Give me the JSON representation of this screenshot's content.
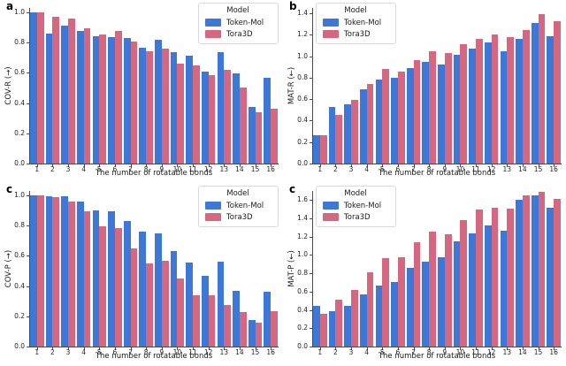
{
  "xlabel": "The number of rotatable bonds",
  "categories": [
    1,
    2,
    3,
    4,
    5,
    6,
    7,
    8,
    9,
    10,
    11,
    12,
    13,
    14,
    15,
    16
  ],
  "legend_title": "Model",
  "colors": {
    "token_mol": "#3d78d6",
    "tora3d": "#d56880",
    "spine": "#4a4a4a",
    "text": "#1a1a1a",
    "legend_border": "#d9d9d9",
    "background": "#ffffff"
  },
  "chart_data": [
    {
      "type": "bar",
      "panel_label": "a",
      "ylabel": "COV-R (→)",
      "ylim": [
        0,
        1.03
      ],
      "yticks": [
        0.0,
        0.2,
        0.4,
        0.6,
        0.8,
        1.0
      ],
      "legend_position": "upper-right",
      "grid": false,
      "series": [
        {
          "name": "Token-Mol",
          "color": "#3d78d6",
          "values": [
            1.0,
            0.86,
            0.915,
            0.875,
            0.84,
            0.835,
            0.83,
            0.765,
            0.82,
            0.74,
            0.715,
            0.61,
            0.74,
            0.595,
            0.375,
            0.57
          ]
        },
        {
          "name": "Tora3D",
          "color": "#d56880",
          "values": [
            1.0,
            0.97,
            0.96,
            0.895,
            0.855,
            0.875,
            0.81,
            0.745,
            0.76,
            0.66,
            0.65,
            0.585,
            0.62,
            0.505,
            0.34,
            0.365
          ]
        }
      ]
    },
    {
      "type": "bar",
      "panel_label": "b",
      "ylabel": "MAT-R (←)",
      "ylim": [
        0,
        1.45
      ],
      "yticks": [
        0.0,
        0.2,
        0.4,
        0.6,
        0.8,
        1.0,
        1.2,
        1.4
      ],
      "legend_position": "upper-left",
      "grid": false,
      "series": [
        {
          "name": "Token-Mol",
          "color": "#3d78d6",
          "values": [
            0.265,
            0.525,
            0.55,
            0.69,
            0.78,
            0.8,
            0.89,
            0.95,
            0.92,
            1.015,
            1.07,
            1.125,
            1.05,
            1.165,
            1.31,
            1.19
          ]
        },
        {
          "name": "Tora3D",
          "color": "#d56880",
          "values": [
            0.26,
            0.45,
            0.59,
            0.74,
            0.88,
            0.855,
            0.965,
            1.05,
            1.03,
            1.11,
            1.16,
            1.2,
            1.18,
            1.24,
            1.39,
            1.33
          ]
        }
      ]
    },
    {
      "type": "bar",
      "panel_label": "c",
      "ylabel": "COV-P (→)",
      "ylim": [
        0,
        1.03
      ],
      "yticks": [
        0.0,
        0.2,
        0.4,
        0.6,
        0.8,
        1.0
      ],
      "legend_position": "upper-right",
      "grid": false,
      "series": [
        {
          "name": "Token-Mol",
          "color": "#3d78d6",
          "values": [
            1.0,
            0.995,
            0.995,
            0.96,
            0.9,
            0.895,
            0.83,
            0.76,
            0.75,
            0.63,
            0.555,
            0.47,
            0.56,
            0.37,
            0.175,
            0.365
          ]
        },
        {
          "name": "Tora3D",
          "color": "#d56880",
          "values": [
            1.0,
            0.99,
            0.96,
            0.895,
            0.795,
            0.785,
            0.65,
            0.55,
            0.565,
            0.45,
            0.34,
            0.34,
            0.275,
            0.23,
            0.16,
            0.235
          ]
        }
      ]
    },
    {
      "type": "bar",
      "panel_label": "c",
      "ylabel": "MAT-P (←)",
      "ylim": [
        0,
        1.7
      ],
      "yticks": [
        0.0,
        0.2,
        0.4,
        0.6,
        0.8,
        1.0,
        1.2,
        1.4,
        1.6
      ],
      "legend_position": "upper-left",
      "grid": false,
      "series": [
        {
          "name": "Token-Mol",
          "color": "#3d78d6",
          "values": [
            0.445,
            0.39,
            0.44,
            0.57,
            0.665,
            0.705,
            0.855,
            0.93,
            0.975,
            1.145,
            1.235,
            1.32,
            1.265,
            1.6,
            1.655,
            1.52
          ]
        },
        {
          "name": "Tora3D",
          "color": "#d56880",
          "values": [
            0.355,
            0.515,
            0.615,
            0.81,
            0.97,
            0.98,
            1.135,
            1.255,
            1.225,
            1.38,
            1.5,
            1.515,
            1.51,
            1.655,
            1.69,
            1.61
          ]
        }
      ]
    }
  ]
}
